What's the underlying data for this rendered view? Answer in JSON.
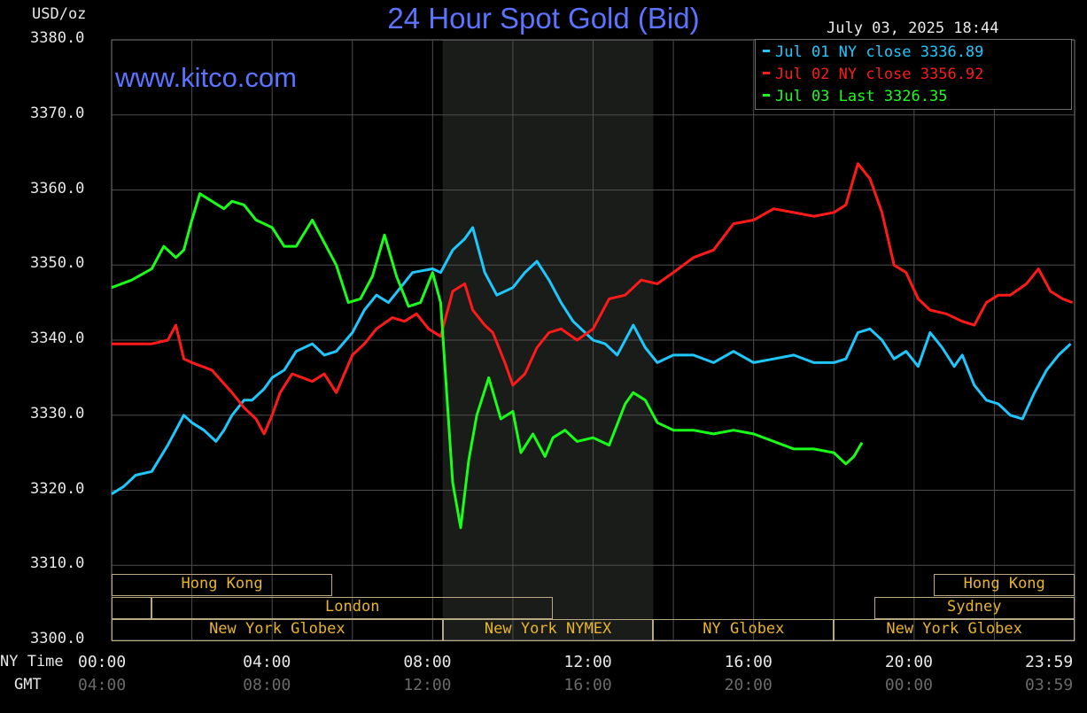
{
  "header": {
    "title": "24 Hour Spot Gold (Bid)",
    "unit": "USD/oz",
    "timestamp": "July 03, 2025 18:44",
    "website": "www.kitco.com"
  },
  "legend": [
    {
      "label": "Jul 01 NY close 3336.89",
      "color": "#1ec8ff"
    },
    {
      "label": "Jul 02 NY close 3356.92",
      "color": "#ff1a1a"
    },
    {
      "label": "Jul 03 Last 3326.35",
      "color": "#19ff19"
    }
  ],
  "axis_labels": {
    "ny_time": "NY Time",
    "gmt": "GMT"
  },
  "markets": {
    "row1": [
      {
        "label": "Hong Kong",
        "x0": 0.0,
        "x1": 5.5
      },
      {
        "label": "Hong Kong",
        "x0": 20.5,
        "x1": 24.0
      }
    ],
    "row2": [
      {
        "label": "",
        "x0": 0.0,
        "x1": 1.0
      },
      {
        "label": "London",
        "x0": 1.0,
        "x1": 11.0
      },
      {
        "label": "Sydney",
        "x0": 19.0,
        "x1": 24.0
      }
    ],
    "row3": [
      {
        "label": "New York Globex",
        "x0": 0.0,
        "x1": 8.25
      },
      {
        "label": "New York NYMEX",
        "x0": 8.25,
        "x1": 13.5
      },
      {
        "label": "NY Globex",
        "x0": 13.5,
        "x1": 18.0
      },
      {
        "label": "New York Globex",
        "x0": 18.0,
        "x1": 24.0
      }
    ]
  },
  "chart_data": {
    "type": "line",
    "title": "24 Hour Spot Gold (Bid)",
    "ylabel": "USD/oz",
    "ylim": [
      3300,
      3380
    ],
    "xlim": [
      0,
      24
    ],
    "y_ticks": [
      "3300.0",
      "3310.0",
      "3320.0",
      "3330.0",
      "3340.0",
      "3350.0",
      "3360.0",
      "3370.0",
      "3380.0"
    ],
    "x_ticks_ny": [
      "00:00",
      "04:00",
      "08:00",
      "12:00",
      "16:00",
      "20:00",
      "23:59"
    ],
    "x_ticks_gmt": [
      "04:00",
      "08:00",
      "12:00",
      "16:00",
      "20:00",
      "00:00",
      "03:59"
    ],
    "grid": true,
    "shaded_hours": [
      8.25,
      13.5
    ],
    "series": [
      {
        "name": "Jul 01 NY close 3336.89",
        "color": "#1ec8ff",
        "x": [
          0,
          0.3,
          0.6,
          1.0,
          1.4,
          1.8,
          2.0,
          2.3,
          2.6,
          2.8,
          3.0,
          3.3,
          3.5,
          3.8,
          4.0,
          4.3,
          4.6,
          5.0,
          5.3,
          5.6,
          6.0,
          6.3,
          6.6,
          6.9,
          7.2,
          7.5,
          8.0,
          8.2,
          8.5,
          8.8,
          9.0,
          9.3,
          9.6,
          10.0,
          10.3,
          10.6,
          10.9,
          11.2,
          11.5,
          12.0,
          12.3,
          12.6,
          13.0,
          13.3,
          13.6,
          14.0,
          14.5,
          15.0,
          15.5,
          16.0,
          16.5,
          17.0,
          17.5,
          18.0,
          18.3,
          18.6,
          18.9,
          19.2,
          19.5,
          19.8,
          20.1,
          20.4,
          20.7,
          21.0,
          21.2,
          21.5,
          21.8,
          22.1,
          22.4,
          22.7,
          23.0,
          23.3,
          23.6,
          23.9
        ],
        "y": [
          3319.5,
          3320.5,
          3322,
          3322.5,
          3326,
          3330,
          3329,
          3328,
          3326.5,
          3328,
          3330,
          3332,
          3332,
          3333.5,
          3335,
          3336,
          3338.5,
          3339.5,
          3338,
          3338.5,
          3341,
          3344,
          3346,
          3345,
          3347,
          3349,
          3349.5,
          3349,
          3352,
          3353.5,
          3355,
          3349,
          3346,
          3347,
          3349,
          3350.5,
          3348,
          3345,
          3342.5,
          3340,
          3339.5,
          3338,
          3342,
          3339,
          3337,
          3338,
          3338,
          3337,
          3338.5,
          3337,
          3337.5,
          3338,
          3337,
          3337,
          3337.5,
          3341,
          3341.5,
          3340,
          3337.5,
          3338.5,
          3336.5,
          3341,
          3339,
          3336.5,
          3338,
          3334,
          3332,
          3331.5,
          3330,
          3329.5,
          3333,
          3336,
          3338,
          3339.5
        ]
      },
      {
        "name": "Jul 02 NY close 3356.92",
        "color": "#ff1a1a",
        "x": [
          0,
          0.5,
          1.0,
          1.4,
          1.6,
          1.8,
          2.0,
          2.5,
          3.0,
          3.3,
          3.6,
          3.8,
          4.0,
          4.2,
          4.5,
          5.0,
          5.3,
          5.6,
          6.0,
          6.3,
          6.6,
          7.0,
          7.3,
          7.6,
          7.9,
          8.2,
          8.5,
          8.8,
          9.0,
          9.3,
          9.5,
          9.8,
          10.0,
          10.3,
          10.6,
          10.9,
          11.2,
          11.6,
          12.0,
          12.4,
          12.8,
          13.2,
          13.6,
          14.0,
          14.5,
          15.0,
          15.5,
          16.0,
          16.5,
          17.0,
          17.5,
          18.0,
          18.3,
          18.6,
          18.9,
          19.2,
          19.5,
          19.8,
          20.1,
          20.4,
          20.8,
          21.2,
          21.5,
          21.8,
          22.1,
          22.4,
          22.8,
          23.1,
          23.4,
          23.7,
          23.95
        ],
        "y": [
          3339.5,
          3339.5,
          3339.5,
          3340,
          3342,
          3337.5,
          3337,
          3336,
          3333,
          3331,
          3329.5,
          3327.5,
          3330,
          3333,
          3335.5,
          3334.5,
          3335.5,
          3333,
          3338,
          3339.5,
          3341.5,
          3343,
          3342.5,
          3343.5,
          3341.5,
          3340.5,
          3346.5,
          3347.5,
          3344,
          3342,
          3341,
          3337,
          3334,
          3335.5,
          3339,
          3341,
          3341.5,
          3340,
          3341.5,
          3345.5,
          3346,
          3348,
          3347.5,
          3349,
          3351,
          3352,
          3355.5,
          3356,
          3357.5,
          3357,
          3356.5,
          3357,
          3358,
          3363.5,
          3361.5,
          3357,
          3350,
          3349,
          3345.5,
          3344,
          3343.5,
          3342.5,
          3342,
          3345,
          3346,
          3346,
          3347.5,
          3349.5,
          3346.5,
          3345.5,
          3345
        ]
      },
      {
        "name": "Jul 03 Last 3326.35",
        "color": "#19ff19",
        "x": [
          0,
          0.5,
          1.0,
          1.3,
          1.6,
          1.8,
          2.0,
          2.2,
          2.5,
          2.8,
          3.0,
          3.3,
          3.6,
          4.0,
          4.3,
          4.6,
          5.0,
          5.3,
          5.6,
          5.9,
          6.2,
          6.5,
          6.8,
          7.1,
          7.4,
          7.7,
          8.0,
          8.2,
          8.35,
          8.5,
          8.7,
          8.9,
          9.1,
          9.4,
          9.7,
          10.0,
          10.2,
          10.5,
          10.8,
          11.0,
          11.3,
          11.6,
          12.0,
          12.4,
          12.8,
          13.0,
          13.3,
          13.6,
          14.0,
          14.5,
          15.0,
          15.5,
          16.0,
          16.5,
          17.0,
          17.5,
          18.0,
          18.3,
          18.5,
          18.7
        ],
        "y": [
          3347,
          3348,
          3349.5,
          3352.5,
          3351,
          3352,
          3356,
          3359.5,
          3358.5,
          3357.5,
          3358.5,
          3358,
          3356,
          3355,
          3352.5,
          3352.5,
          3356,
          3353,
          3350,
          3345,
          3345.5,
          3348.5,
          3354,
          3348.5,
          3344.5,
          3345,
          3349,
          3345,
          3333,
          3321,
          3315,
          3324,
          3330,
          3335,
          3329.5,
          3330.5,
          3325,
          3327.5,
          3324.5,
          3327,
          3328,
          3326.5,
          3327,
          3326,
          3331.5,
          3333,
          3332,
          3329,
          3328,
          3328,
          3327.5,
          3328,
          3327.5,
          3326.5,
          3325.5,
          3325.5,
          3325,
          3323.5,
          3324.5,
          3326.35
        ]
      }
    ]
  }
}
